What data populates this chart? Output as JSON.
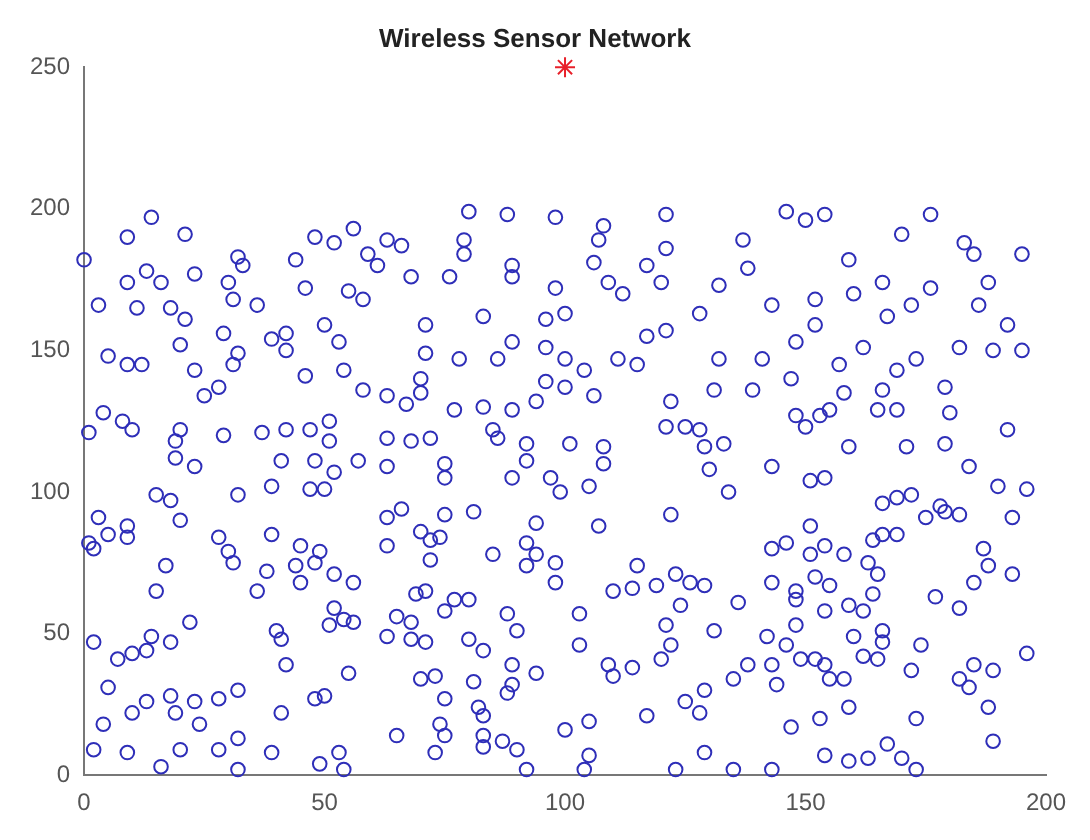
{
  "chart_data": {
    "type": "scatter",
    "title": "Wireless Sensor Network",
    "xlim": [
      0,
      200
    ],
    "xticks": [
      0,
      50,
      100,
      150,
      200
    ],
    "ylim": [
      0,
      250
    ],
    "yticks": [
      0,
      50,
      100,
      150,
      200,
      250
    ],
    "series": [
      {
        "color": "#2e2eb8",
        "marker": "circle",
        "x": [
          9,
          14,
          21,
          32,
          48,
          56,
          63,
          80,
          88,
          98,
          108,
          121,
          137,
          146,
          150,
          154,
          170,
          176,
          183,
          195,
          0,
          3,
          13,
          9,
          11,
          16,
          18,
          21,
          20,
          23,
          5,
          9,
          12,
          4,
          8,
          10,
          1,
          20,
          19,
          19,
          23,
          23,
          25,
          28,
          31,
          32,
          29,
          31,
          33,
          30,
          36,
          39,
          44,
          52,
          46,
          42,
          42,
          50,
          53,
          46,
          54,
          58,
          55,
          58,
          29,
          37,
          42,
          47,
          51,
          51,
          41,
          48,
          52,
          57,
          39,
          47,
          50,
          32,
          15,
          59,
          66,
          61,
          68,
          79,
          79,
          76,
          89,
          89,
          98,
          107,
          106,
          109,
          112,
          117,
          121,
          120,
          71,
          83,
          96,
          100,
          89,
          86,
          96,
          100,
          104,
          71,
          78,
          111,
          115,
          117,
          121,
          70,
          70,
          63,
          67,
          77,
          83,
          89,
          94,
          96,
          100,
          106,
          63,
          68,
          72,
          63,
          75,
          75,
          85,
          86,
          92,
          92,
          89,
          97,
          101,
          108,
          108,
          121,
          125,
          122,
          128,
          138,
          132,
          128,
          143,
          152,
          159,
          160,
          166,
          167,
          172,
          176,
          185,
          188,
          186,
          192,
          152,
          148,
          141,
          132,
          157,
          162,
          173,
          169,
          182,
          189,
          195,
          179,
          166,
          147,
          139,
          131,
          158,
          155,
          153,
          148,
          150,
          165,
          169,
          180,
          129,
          133,
          159,
          171,
          179,
          192,
          130,
          143,
          151,
          154,
          184,
          190,
          196,
          169,
          178,
          3,
          1,
          2,
          5,
          9,
          9,
          18,
          20,
          17,
          15,
          22,
          14,
          18,
          13,
          10,
          7,
          2,
          5,
          4,
          10,
          13,
          18,
          19,
          23,
          24,
          28,
          32,
          2,
          9,
          16,
          20,
          28,
          32,
          32,
          39,
          41,
          42,
          40,
          41,
          36,
          38,
          39,
          28,
          30,
          31,
          45,
          44,
          45,
          48,
          49,
          52,
          56,
          52,
          51,
          54,
          56,
          55,
          48,
          50,
          49,
          53,
          54,
          63,
          65,
          68,
          68,
          71,
          63,
          63,
          66,
          70,
          72,
          74,
          72,
          75,
          81,
          85,
          69,
          71,
          75,
          77,
          80,
          70,
          73,
          75,
          65,
          74,
          75,
          73,
          80,
          83,
          81,
          82,
          83,
          83,
          83,
          88,
          90,
          89,
          88,
          87,
          90,
          92,
          92,
          105,
          99,
          94,
          94,
          92,
          98,
          98,
          107,
          89,
          94,
          103,
          103,
          110,
          114,
          119,
          115,
          122,
          123,
          126,
          129,
          124,
          121,
          122,
          120,
          131,
          109,
          110,
          114,
          117,
          125,
          128,
          129,
          129,
          100,
          105,
          105,
          104,
          123,
          135,
          143,
          136,
          134,
          143,
          146,
          151,
          151,
          154,
          143,
          148,
          148,
          152,
          155,
          154,
          159,
          162,
          148,
          142,
          146,
          149,
          152,
          154,
          138,
          135,
          143,
          144,
          155,
          158,
          159,
          153,
          147,
          154,
          159,
          163,
          167,
          170,
          173,
          173,
          160,
          162,
          166,
          166,
          165,
          172,
          174,
          164,
          163,
          165,
          164,
          166,
          169,
          166,
          172,
          175,
          179,
          182,
          177,
          182,
          185,
          187,
          188,
          193,
          193,
          182,
          185,
          189,
          184,
          188,
          189,
          196,
          158
        ],
        "values": [
          190,
          197,
          191,
          183,
          190,
          193,
          189,
          199,
          198,
          197,
          194,
          198,
          189,
          199,
          196,
          198,
          191,
          198,
          188,
          184,
          182,
          166,
          178,
          174,
          165,
          174,
          165,
          161,
          152,
          177,
          148,
          145,
          145,
          128,
          125,
          122,
          121,
          122,
          118,
          112,
          109,
          143,
          134,
          137,
          145,
          149,
          156,
          168,
          180,
          174,
          166,
          154,
          182,
          188,
          172,
          156,
          150,
          159,
          153,
          141,
          143,
          136,
          171,
          168,
          120,
          121,
          122,
          122,
          125,
          118,
          111,
          111,
          107,
          111,
          102,
          101,
          101,
          99,
          99,
          184,
          187,
          180,
          176,
          189,
          184,
          176,
          180,
          176,
          172,
          189,
          181,
          174,
          170,
          180,
          186,
          174,
          159,
          162,
          161,
          163,
          153,
          147,
          151,
          147,
          143,
          149,
          147,
          147,
          145,
          155,
          157,
          140,
          135,
          134,
          131,
          129,
          130,
          129,
          132,
          139,
          137,
          134,
          119,
          118,
          119,
          109,
          110,
          105,
          122,
          119,
          117,
          111,
          105,
          105,
          117,
          116,
          110,
          123,
          123,
          132,
          122,
          179,
          173,
          163,
          166,
          168,
          182,
          170,
          174,
          162,
          166,
          172,
          184,
          174,
          166,
          159,
          159,
          153,
          147,
          147,
          145,
          151,
          147,
          143,
          151,
          150,
          150,
          137,
          136,
          140,
          136,
          136,
          135,
          129,
          127,
          127,
          123,
          129,
          129,
          128,
          116,
          117,
          116,
          116,
          117,
          122,
          108,
          109,
          104,
          105,
          109,
          102,
          101,
          98,
          95,
          91,
          82,
          80,
          85,
          88,
          84,
          97,
          90,
          74,
          65,
          54,
          49,
          47,
          44,
          43,
          41,
          47,
          31,
          18,
          22,
          26,
          28,
          22,
          26,
          18,
          27,
          30,
          9,
          8,
          3,
          9,
          9,
          13,
          2,
          8,
          22,
          39,
          51,
          48,
          65,
          72,
          85,
          84,
          79,
          75,
          81,
          74,
          68,
          75,
          79,
          71,
          68,
          59,
          53,
          55,
          54,
          36,
          27,
          28,
          4,
          8,
          2,
          49,
          56,
          54,
          48,
          47,
          81,
          91,
          94,
          86,
          83,
          84,
          76,
          92,
          93,
          78,
          64,
          65,
          58,
          62,
          62,
          34,
          35,
          27,
          14,
          18,
          14,
          8,
          48,
          44,
          33,
          24,
          21,
          14,
          10,
          57,
          51,
          32,
          29,
          12,
          9,
          2,
          82,
          102,
          100,
          89,
          78,
          74,
          75,
          68,
          88,
          39,
          36,
          57,
          46,
          65,
          66,
          67,
          74,
          92,
          71,
          68,
          67,
          60,
          53,
          46,
          41,
          51,
          39,
          35,
          38,
          21,
          26,
          22,
          30,
          8,
          16,
          19,
          7,
          2,
          2,
          2,
          2,
          61,
          100,
          80,
          82,
          88,
          78,
          81,
          68,
          65,
          62,
          70,
          67,
          58,
          60,
          58,
          53,
          49,
          46,
          41,
          41,
          39,
          39,
          34,
          39,
          32,
          34,
          34,
          24,
          20,
          17,
          7,
          5,
          6,
          11,
          6,
          2,
          20,
          49,
          42,
          51,
          47,
          41,
          37,
          46,
          64,
          75,
          71,
          83,
          85,
          85,
          96,
          99,
          91,
          93,
          92,
          63,
          59,
          68,
          80,
          74,
          71,
          91,
          34,
          39,
          37,
          31,
          24,
          12,
          43,
          78
        ]
      },
      {
        "color": "#e8202a",
        "marker": "cross",
        "x": [
          100
        ],
        "values": [
          250
        ]
      }
    ]
  }
}
